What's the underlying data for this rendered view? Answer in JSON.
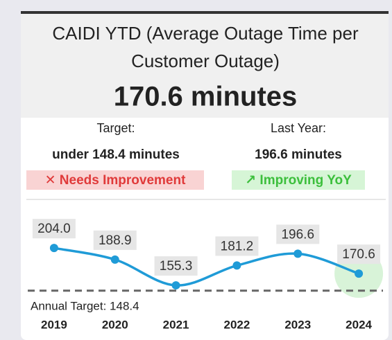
{
  "header": {
    "title_lines": [
      "CAIDI YTD (Average Outage Time per",
      "Customer Outage)"
    ],
    "kpi": "170.6 minutes"
  },
  "comparison": {
    "target": {
      "label": "Target:",
      "value": "under 148.4 minutes",
      "status": "✕ Needs Improvement"
    },
    "last_year": {
      "label": "Last Year:",
      "value": "196.6 minutes",
      "status": "↗ Improving YoY"
    }
  },
  "chart_data": {
    "type": "line",
    "categories": [
      "2019",
      "2020",
      "2021",
      "2022",
      "2023",
      "2024"
    ],
    "values": [
      204.0,
      188.9,
      155.3,
      181.2,
      196.6,
      170.6
    ],
    "value_labels": [
      "204.0",
      "188.9",
      "155.3",
      "181.2",
      "196.6",
      "170.6"
    ],
    "color": "#1f9bd7",
    "ylim": [
      140,
      215
    ],
    "target": 148.4,
    "target_label": "Annual Target: 148.4",
    "highlight_color": "#7dd67d"
  }
}
